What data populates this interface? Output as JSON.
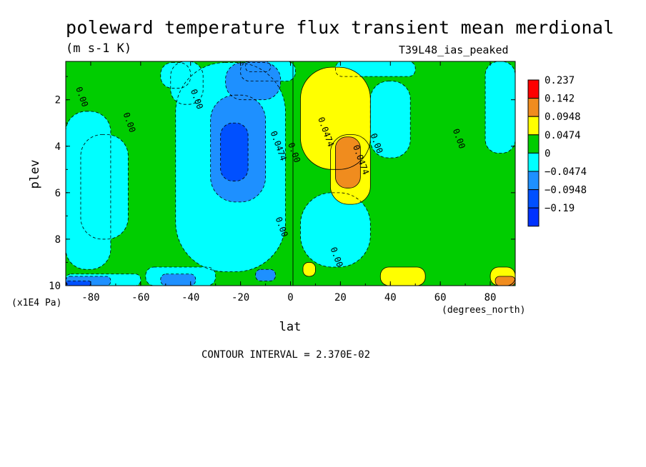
{
  "chart_data": {
    "type": "heatmap",
    "title": "poleward temperature flux transient mean merdional",
    "units": "(m s-1 K)",
    "dataset": "T39L48_ias_peaked",
    "xlabel": "lat",
    "x_units": "(degrees_north)",
    "ylabel": "plev",
    "y_units": "(x1E4 Pa)",
    "xlim": [
      -90,
      90
    ],
    "ylim": [
      10,
      0.35
    ],
    "x_ticks": [
      -80,
      -60,
      -40,
      -20,
      0,
      20,
      40,
      60,
      80
    ],
    "x_tick_labels": [
      "-80",
      "-60",
      "-40",
      "-20",
      "0",
      "20",
      "40",
      "60",
      "80"
    ],
    "y_ticks": [
      2,
      4,
      6,
      8,
      10
    ],
    "y_tick_labels": [
      "2",
      "4",
      "6",
      "8",
      "10"
    ],
    "contour_interval_label": "CONTOUR INTERVAL = 2.370E-02",
    "colorbar": {
      "levels": [
        "0.237",
        "0.142",
        "0.0948",
        "0.0474",
        "0",
        "−0.0474",
        "−0.0948",
        "−0.19"
      ],
      "colors": [
        "#ff0000",
        "#f08c1e",
        "#ffff00",
        "#00cd00",
        "#00ffff",
        "#1e90ff",
        "#0050ff",
        "#0032ff"
      ]
    },
    "contour_labels": [
      {
        "text": "0.00",
        "lat": -86,
        "plev": 1.5
      },
      {
        "text": "0.00",
        "lat": -67,
        "plev": 2.6
      },
      {
        "text": "0.00",
        "lat": -40,
        "plev": 1.6
      },
      {
        "text": "0.0474",
        "lat": -8,
        "plev": 3.4
      },
      {
        "text": "0.00",
        "lat": -1,
        "plev": 3.9
      },
      {
        "text": "0.00",
        "lat": -6,
        "plev": 7.1
      },
      {
        "text": "0.0474",
        "lat": 11,
        "plev": 2.8
      },
      {
        "text": "0.0474",
        "lat": 25,
        "plev": 4.0
      },
      {
        "text": "0.00",
        "lat": 32,
        "plev": 3.5
      },
      {
        "text": "0.00",
        "lat": 16,
        "plev": 8.4
      },
      {
        "text": "0.00",
        "lat": 65,
        "plev": 3.3
      }
    ],
    "regions": [
      {
        "level": 0,
        "lat": [
          -90,
          90
        ],
        "plev": [
          0.35,
          10
        ]
      },
      {
        "level": -0.0474,
        "lat": [
          -90,
          -72
        ],
        "plev": [
          2.5,
          9.3
        ]
      },
      {
        "level": -0.0474,
        "lat": [
          -84,
          -65
        ],
        "plev": [
          3.5,
          8.0
        ]
      },
      {
        "level": -0.0474,
        "lat": [
          -52,
          -40
        ],
        "plev": [
          0.4,
          1.5
        ]
      },
      {
        "level": -0.0474,
        "lat": [
          -48,
          -35
        ],
        "plev": [
          0.35,
          2.2
        ]
      },
      {
        "level": -0.0474,
        "lat": [
          -46,
          -2
        ],
        "plev": [
          0.4,
          9.4
        ]
      },
      {
        "level": -0.0474,
        "lat": [
          -20,
          2
        ],
        "plev": [
          0.35,
          1.2
        ]
      },
      {
        "level": -0.0474,
        "lat": [
          18,
          50
        ],
        "plev": [
          0.35,
          1.0
        ]
      },
      {
        "level": -0.0474,
        "lat": [
          4,
          32
        ],
        "plev": [
          6.0,
          9.2
        ]
      },
      {
        "level": -0.0474,
        "lat": [
          32,
          48
        ],
        "plev": [
          1.2,
          4.5
        ]
      },
      {
        "level": -0.0474,
        "lat": [
          78,
          90
        ],
        "plev": [
          0.35,
          4.3
        ]
      },
      {
        "level": -0.0474,
        "lat": [
          -90,
          -60
        ],
        "plev": [
          9.5,
          10
        ]
      },
      {
        "level": -0.0474,
        "lat": [
          -58,
          -30
        ],
        "plev": [
          9.2,
          10
        ]
      },
      {
        "level": -0.0948,
        "lat": [
          -32,
          -10
        ],
        "plev": [
          1.8,
          6.4
        ]
      },
      {
        "level": -0.0948,
        "lat": [
          -26,
          -4
        ],
        "plev": [
          0.4,
          2.0
        ]
      },
      {
        "level": -0.0948,
        "lat": [
          -18,
          -8
        ],
        "plev": [
          0.35,
          0.8
        ]
      },
      {
        "level": -0.0948,
        "lat": [
          -90,
          -72
        ],
        "plev": [
          9.6,
          10
        ]
      },
      {
        "level": -0.0948,
        "lat": [
          -52,
          -38
        ],
        "plev": [
          9.5,
          10
        ]
      },
      {
        "level": -0.0948,
        "lat": [
          -14,
          -6
        ],
        "plev": [
          9.3,
          9.8
        ]
      },
      {
        "level": -0.19,
        "lat": [
          -28,
          -17
        ],
        "plev": [
          3.0,
          5.5
        ]
      },
      {
        "level": -0.19,
        "lat": [
          -90,
          -80
        ],
        "plev": [
          9.8,
          10
        ]
      },
      {
        "level": 0.0474,
        "lat": [
          4,
          32
        ],
        "plev": [
          0.6,
          5.0
        ]
      },
      {
        "level": 0.0474,
        "lat": [
          16,
          32
        ],
        "plev": [
          3.5,
          6.5
        ]
      },
      {
        "level": 0.0474,
        "lat": [
          5,
          10
        ],
        "plev": [
          9.0,
          9.6
        ]
      },
      {
        "level": 0.0474,
        "lat": [
          36,
          54
        ],
        "plev": [
          9.2,
          10
        ]
      },
      {
        "level": 0.0474,
        "lat": [
          80,
          90
        ],
        "plev": [
          9.2,
          10
        ]
      },
      {
        "level": 0.0948,
        "lat": [
          18,
          28
        ],
        "plev": [
          3.6,
          5.8
        ]
      },
      {
        "level": 0.0948,
        "lat": [
          82,
          90
        ],
        "plev": [
          9.6,
          10
        ]
      }
    ]
  }
}
